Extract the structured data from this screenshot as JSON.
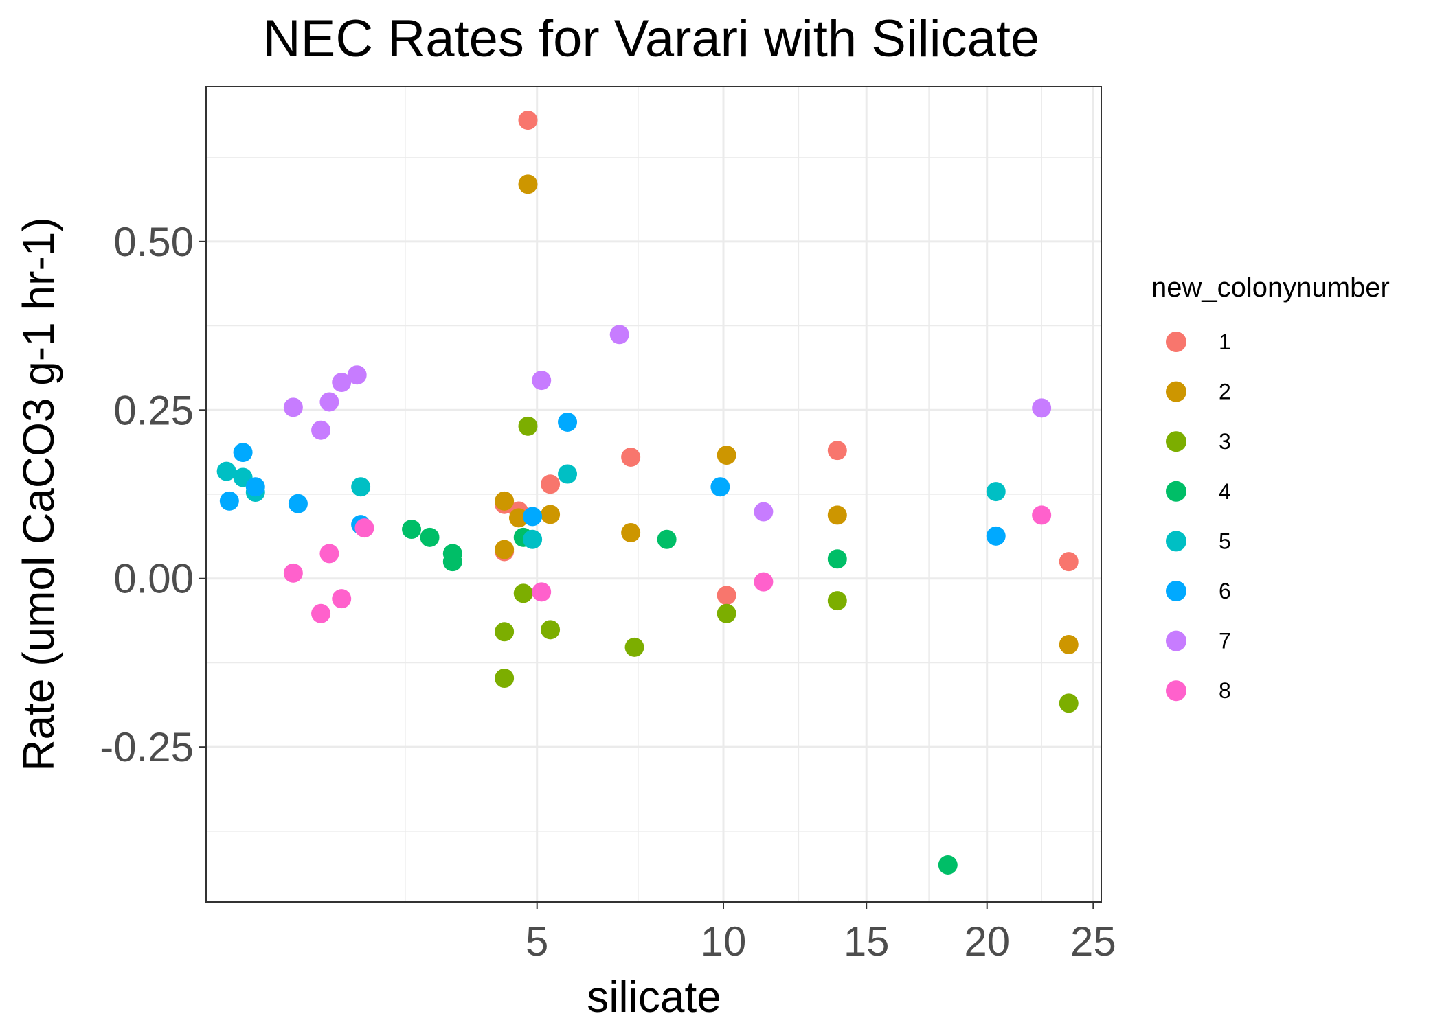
{
  "chart_data": {
    "type": "scatter",
    "title": "NEC Rates for Varari with Silicate",
    "xlabel": "silicate",
    "ylabel": "Rate (umol CaCO3 g-1 hr-1)",
    "x_scale": "sqrt",
    "xlim": [
      0.35,
      25.4
    ],
    "ylim": [
      -0.48,
      0.73
    ],
    "x_major_ticks": [
      5,
      10,
      15,
      20,
      25
    ],
    "x_major_tick_labels": [
      "5",
      "10",
      "15",
      "20",
      "25"
    ],
    "x_minor_gridlines": [
      7.5,
      12.5,
      17.5,
      22.5,
      2.5
    ],
    "y_major_ticks": [
      -0.25,
      0,
      0.25,
      0.5
    ],
    "y_major_tick_labels": [
      "-0.25",
      "0.00",
      "0.25",
      "0.50"
    ],
    "y_minor_gridlines": [
      -0.375,
      -0.125,
      0.125,
      0.375,
      0.625
    ],
    "grid": true,
    "legend": {
      "title": "new_colonynumber",
      "position": "right"
    },
    "series": [
      {
        "name": "1",
        "color": "#F8766D",
        "points": [
          [
            4.8,
            0.68
          ],
          [
            4.3,
            0.11
          ],
          [
            4.3,
            0.04
          ],
          [
            4.6,
            0.1
          ],
          [
            5.3,
            0.14
          ],
          [
            7.3,
            0.18
          ],
          [
            10.1,
            -0.025
          ],
          [
            13.9,
            0.19
          ],
          [
            23.8,
            0.025
          ]
        ]
      },
      {
        "name": "2",
        "color": "#CD9600",
        "points": [
          [
            4.8,
            0.585
          ],
          [
            4.3,
            0.115
          ],
          [
            4.3,
            0.043
          ],
          [
            4.6,
            0.09
          ],
          [
            5.3,
            0.095
          ],
          [
            7.3,
            0.068
          ],
          [
            10.1,
            0.183
          ],
          [
            13.9,
            0.094
          ],
          [
            23.8,
            -0.098
          ]
        ]
      },
      {
        "name": "3",
        "color": "#7CAE00",
        "points": [
          [
            4.8,
            0.226
          ],
          [
            4.3,
            -0.079
          ],
          [
            4.3,
            -0.148
          ],
          [
            4.7,
            -0.022
          ],
          [
            5.3,
            -0.076
          ],
          [
            7.4,
            -0.102
          ],
          [
            10.1,
            -0.052
          ],
          [
            13.9,
            -0.033
          ],
          [
            23.8,
            -0.185
          ]
        ]
      },
      {
        "name": "4",
        "color": "#00BE67",
        "points": [
          [
            2.6,
            0.073
          ],
          [
            2.9,
            0.061
          ],
          [
            3.3,
            0.037
          ],
          [
            3.3,
            0.025
          ],
          [
            4.7,
            0.061
          ],
          [
            8.3,
            0.058
          ],
          [
            13.9,
            0.029
          ],
          [
            18.3,
            -0.425
          ]
        ]
      },
      {
        "name": "5",
        "color": "#00BFC4",
        "points": [
          [
            0.48,
            0.159
          ],
          [
            0.6,
            0.15
          ],
          [
            0.7,
            0.128
          ],
          [
            1.85,
            0.136
          ],
          [
            4.9,
            0.058
          ],
          [
            5.7,
            0.155
          ],
          [
            20.4,
            0.129
          ]
        ]
      },
      {
        "name": "6",
        "color": "#00A9FF",
        "points": [
          [
            0.5,
            0.115
          ],
          [
            0.6,
            0.187
          ],
          [
            0.7,
            0.136
          ],
          [
            1.1,
            0.111
          ],
          [
            1.85,
            0.08
          ],
          [
            4.9,
            0.092
          ],
          [
            5.7,
            0.232
          ],
          [
            9.9,
            0.136
          ],
          [
            20.4,
            0.063
          ]
        ]
      },
      {
        "name": "7",
        "color": "#C77CFF",
        "points": [
          [
            1.05,
            0.254
          ],
          [
            1.35,
            0.22
          ],
          [
            1.45,
            0.262
          ],
          [
            1.6,
            0.291
          ],
          [
            1.8,
            0.302
          ],
          [
            5.1,
            0.294
          ],
          [
            7.0,
            0.362
          ],
          [
            11.3,
            0.099
          ],
          [
            22.5,
            0.253
          ]
        ]
      },
      {
        "name": "8",
        "color": "#FF61CC",
        "points": [
          [
            1.05,
            0.008
          ],
          [
            1.35,
            -0.052
          ],
          [
            1.45,
            0.037
          ],
          [
            1.6,
            -0.03
          ],
          [
            1.9,
            0.075
          ],
          [
            5.1,
            -0.02
          ],
          [
            11.3,
            -0.005
          ],
          [
            22.5,
            0.094
          ]
        ]
      }
    ]
  }
}
